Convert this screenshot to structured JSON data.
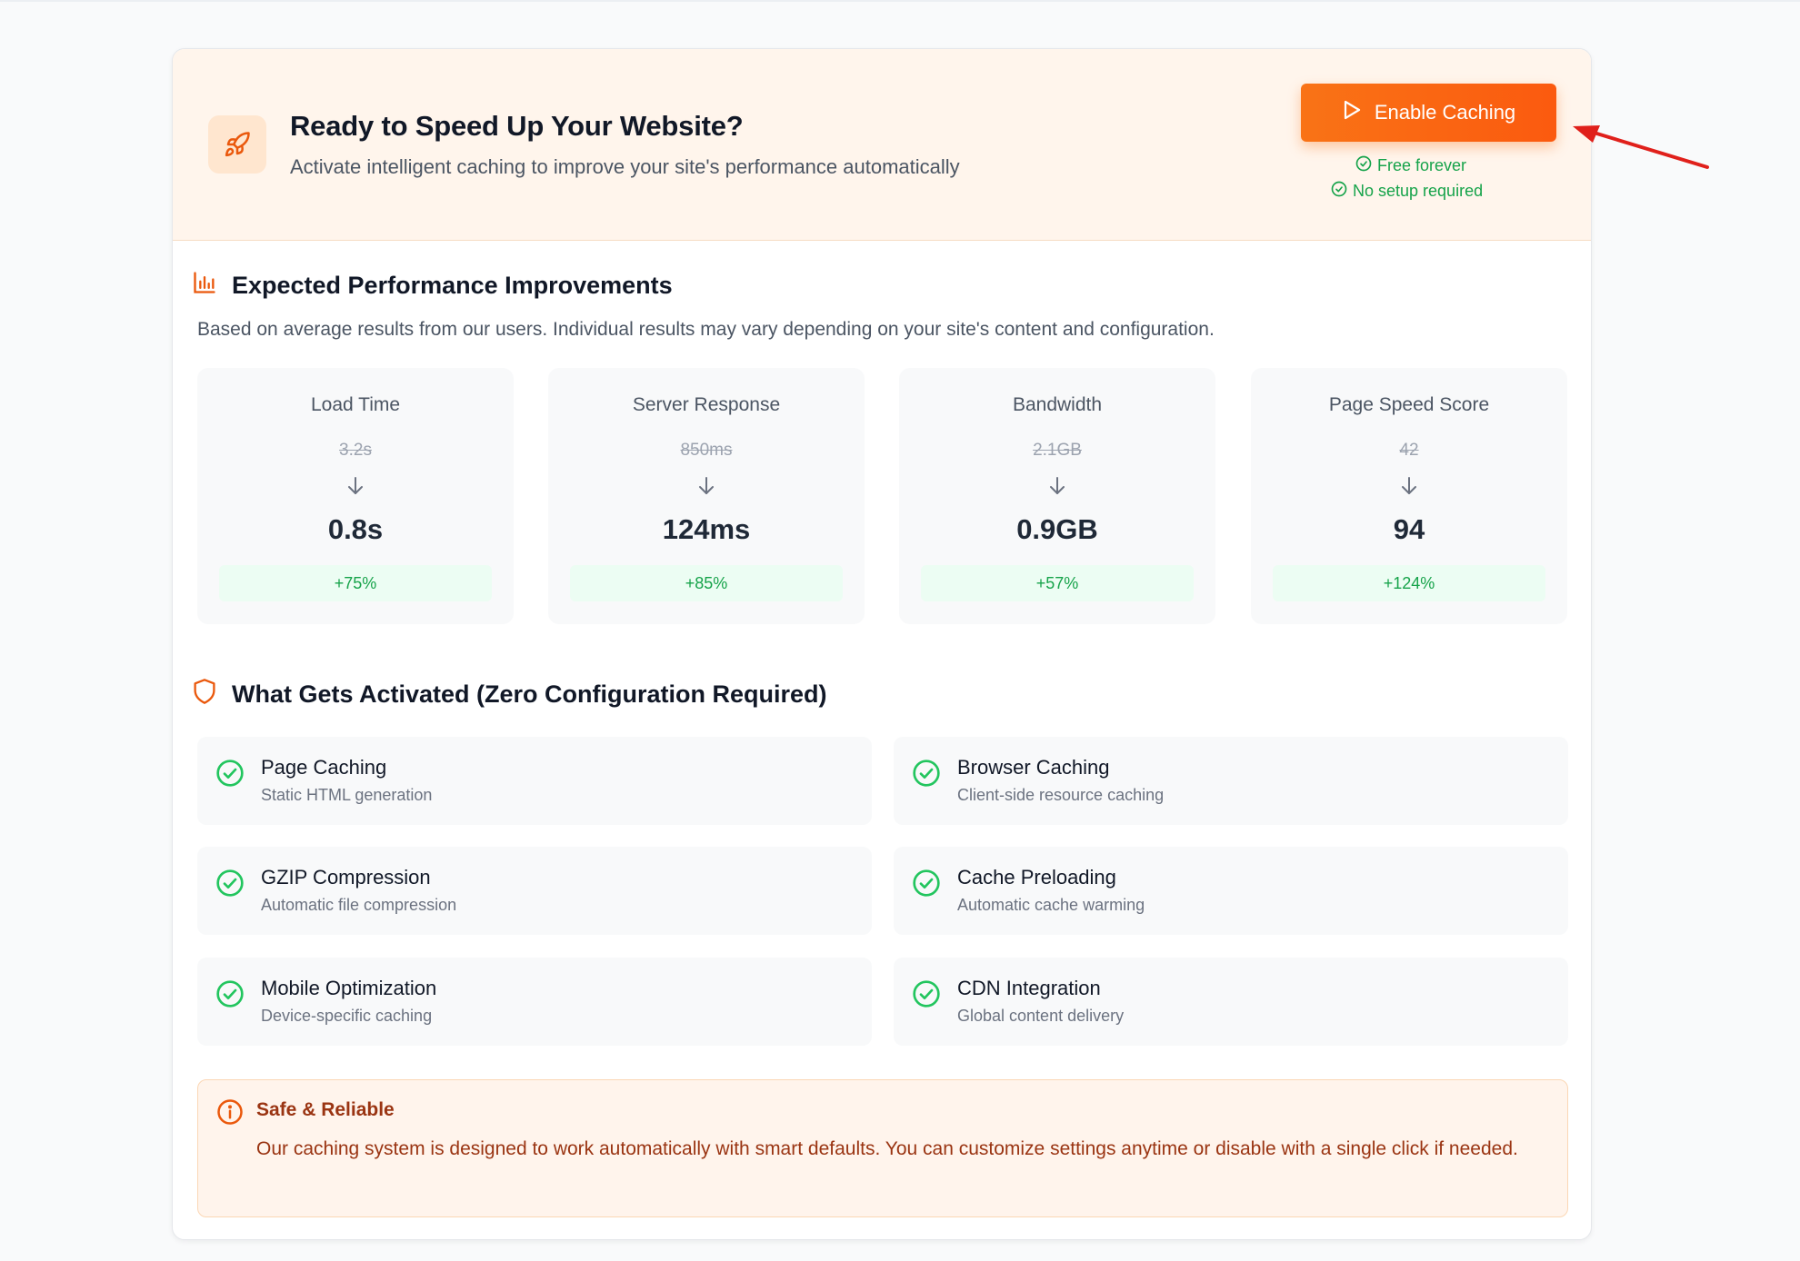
{
  "banner": {
    "title": "Ready to Speed Up Your Website?",
    "subtitle": "Activate intelligent caching to improve your site's performance automatically",
    "icon": "rocket-icon",
    "button_label": "Enable Caching",
    "perks": [
      "Free forever",
      "No setup required"
    ]
  },
  "performance": {
    "title": "Expected Performance Improvements",
    "icon": "bar-chart-icon",
    "description": "Based on average results from our users. Individual results may vary depending on your site's content and configuration.",
    "stats": [
      {
        "label": "Load Time",
        "before": "3.2s",
        "after": "0.8s",
        "gain": "+75%"
      },
      {
        "label": "Server Response",
        "before": "850ms",
        "after": "124ms",
        "gain": "+85%"
      },
      {
        "label": "Bandwidth",
        "before": "2.1GB",
        "after": "0.9GB",
        "gain": "+57%"
      },
      {
        "label": "Page Speed Score",
        "before": "42",
        "after": "94",
        "gain": "+124%"
      }
    ]
  },
  "features": {
    "title": "What Gets Activated (Zero Configuration Required)",
    "icon": "shield-icon",
    "items": [
      {
        "title": "Page Caching",
        "desc": "Static HTML generation"
      },
      {
        "title": "Browser Caching",
        "desc": "Client-side resource caching"
      },
      {
        "title": "GZIP Compression",
        "desc": "Automatic file compression"
      },
      {
        "title": "Cache Preloading",
        "desc": "Automatic cache warming"
      },
      {
        "title": "Mobile Optimization",
        "desc": "Device-specific caching"
      },
      {
        "title": "CDN Integration",
        "desc": "Global content delivery"
      }
    ]
  },
  "safe": {
    "title": "Safe & Reliable",
    "text": "Our caching system is designed to work automatically with smart defaults. You can customize settings anytime or disable with a single click if needed.",
    "icon": "info-icon"
  },
  "colors": {
    "accent": "#f97316",
    "success": "#16a34a",
    "annotation": "#e0201b"
  }
}
